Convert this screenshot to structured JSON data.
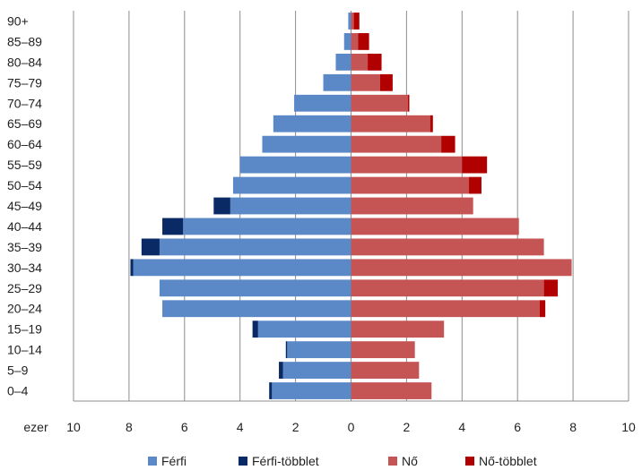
{
  "chart_data": {
    "type": "bar",
    "orientation": "horizontal",
    "layout": "population-pyramid",
    "categories": [
      "90+",
      "85–89",
      "80–84",
      "75–79",
      "70–74",
      "65–69",
      "60–64",
      "55–59",
      "50–54",
      "45–49",
      "40–44",
      "35–39",
      "30–34",
      "25–29",
      "20–24",
      "15–19",
      "10–14",
      "5–9",
      "0–4"
    ],
    "series": [
      {
        "name": "Férfi",
        "side": "left",
        "color": "#5b88c7",
        "values": [
          0.1,
          0.25,
          0.55,
          1.0,
          2.05,
          2.8,
          3.2,
          4.0,
          4.25,
          4.35,
          6.05,
          6.9,
          7.85,
          6.9,
          6.8,
          3.35,
          2.3,
          2.45,
          2.85
        ]
      },
      {
        "name": "Férfi-többlet",
        "side": "left",
        "color": "#0a2a66",
        "values": [
          0,
          0,
          0,
          0,
          0,
          0,
          0,
          0,
          0,
          0.6,
          0.75,
          0.65,
          0.1,
          0,
          0,
          0.2,
          0.05,
          0.15,
          0.1
        ]
      },
      {
        "name": "Nő",
        "side": "right",
        "color": "#c55454",
        "values": [
          0.1,
          0.25,
          0.6,
          1.05,
          2.05,
          2.85,
          3.25,
          4.0,
          4.25,
          4.4,
          6.05,
          6.95,
          7.95,
          6.95,
          6.8,
          3.35,
          2.3,
          2.45,
          2.9
        ]
      },
      {
        "name": "Nő-többlet",
        "side": "right",
        "color": "#b00000",
        "values": [
          0.2,
          0.4,
          0.5,
          0.45,
          0.05,
          0.1,
          0.5,
          0.9,
          0.45,
          0,
          0,
          0,
          0,
          0.5,
          0.2,
          0,
          0,
          0,
          0
        ]
      }
    ],
    "xlabel": "ezer",
    "x_ticks": [
      "10",
      "8",
      "6",
      "4",
      "2",
      "0",
      "2",
      "4",
      "6",
      "8",
      "10"
    ],
    "xlim": [
      -10,
      10
    ],
    "grid": "vertical",
    "legend_position": "bottom"
  }
}
